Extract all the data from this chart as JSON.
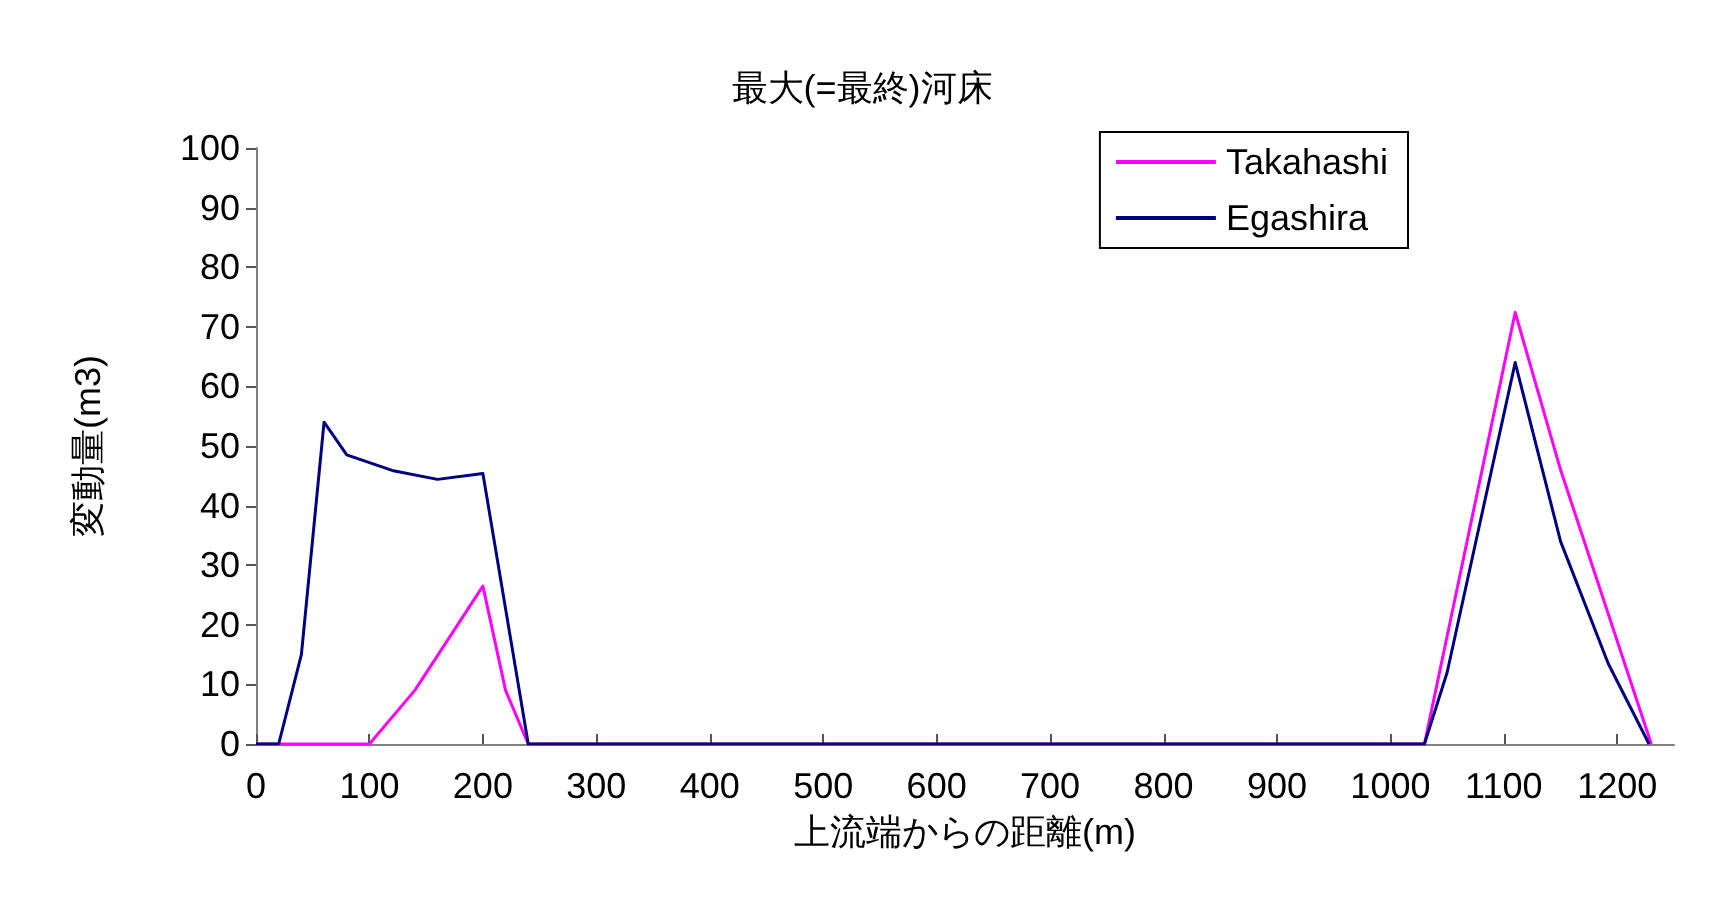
{
  "chart_data": {
    "type": "line",
    "title": "最大(=最終)河床",
    "xlabel": "上流端からの距離(m)",
    "ylabel": "変動量(m3)",
    "xlim": [
      0,
      1250
    ],
    "xticks": [
      0,
      100,
      200,
      300,
      400,
      500,
      600,
      700,
      800,
      900,
      1000,
      1100,
      1200
    ],
    "ylim": [
      0,
      100
    ],
    "yticks": [
      0,
      10,
      20,
      30,
      40,
      50,
      60,
      70,
      80,
      90,
      100
    ],
    "grid": false,
    "legend": "top right",
    "marker": "none",
    "line_style": "solid",
    "series": [
      {
        "name": "Takahashi",
        "color": "#ff00ff",
        "x": [
          0,
          20,
          40,
          60,
          80,
          100,
          140,
          200,
          220,
          240,
          1030,
          1110,
          1150,
          1230
        ],
        "values": [
          0,
          0,
          0,
          0,
          0,
          0,
          9,
          26.5,
          9,
          0,
          0,
          72.4,
          46,
          0
        ]
      },
      {
        "name": "Egashira",
        "color": "#000080",
        "x": [
          0,
          20,
          40,
          60,
          80,
          120,
          160,
          200,
          240,
          1030,
          1050,
          1110,
          1150,
          1192,
          1228
        ],
        "values": [
          0,
          0,
          15,
          54,
          48.5,
          45.9,
          44.4,
          45.4,
          0,
          0,
          12,
          64,
          34,
          13.5,
          0
        ]
      }
    ]
  }
}
